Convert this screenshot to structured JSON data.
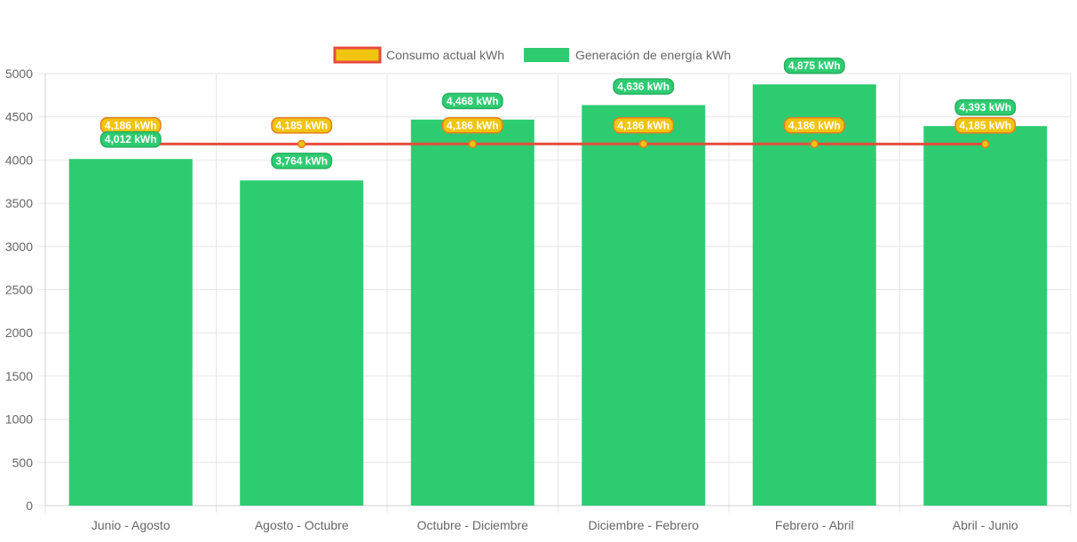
{
  "chart_data": {
    "type": "bar",
    "categories": [
      "Junio - Agosto",
      "Agosto - Octubre",
      "Octubre - Diciembre",
      "Diciembre - Febrero",
      "Febrero - Abril",
      "Abril - Junio"
    ],
    "series": [
      {
        "name": "Consumo actual kWh",
        "type": "line",
        "color": "#e74c3c",
        "point_color": "#f1c40f",
        "values": [
          4186,
          4185,
          4186,
          4186,
          4186,
          4185
        ],
        "labels": [
          "4,186 kWh",
          "4,185 kWh",
          "4,186 kWh",
          "4,186 kWh",
          "4,186 kWh",
          "4,185 kWh"
        ]
      },
      {
        "name": "Generación de energía kWh",
        "type": "bar",
        "color": "#2ecc71",
        "values": [
          4012,
          3764,
          4468,
          4636,
          4875,
          4393
        ],
        "labels": [
          "4,012 kWh",
          "3,764 kWh",
          "4,468 kWh",
          "4,636 kWh",
          "4,875 kWh",
          "4,393 kWh"
        ]
      }
    ],
    "ylim": [
      0,
      5000
    ],
    "yticks": [
      "0",
      "500",
      "1000",
      "1500",
      "2000",
      "2500",
      "3000",
      "3500",
      "4000",
      "4500",
      "5000"
    ],
    "grid": true,
    "legend_position": "top-center"
  }
}
